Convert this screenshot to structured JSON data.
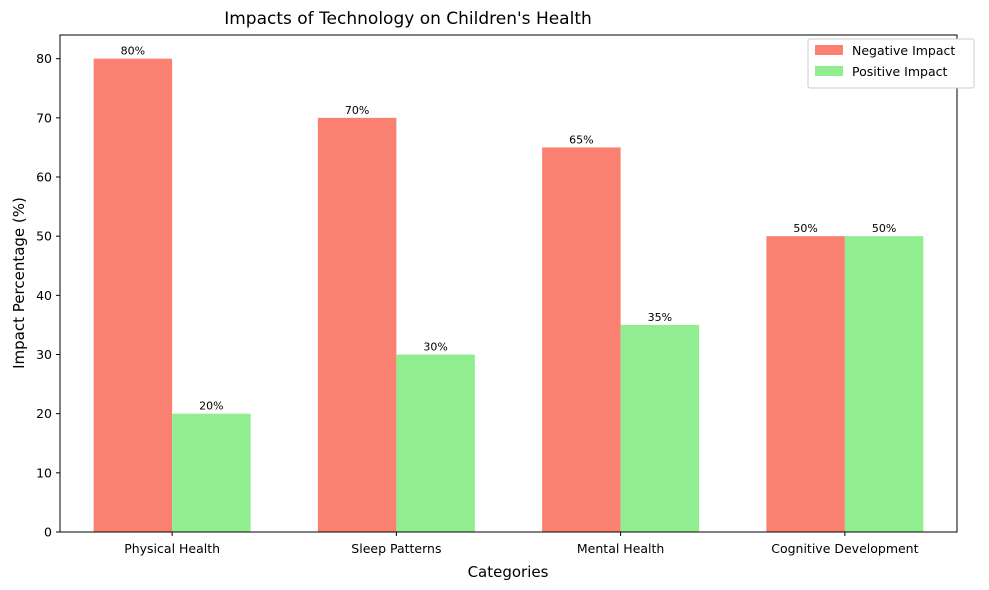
{
  "chart_data": {
    "type": "bar",
    "title": "Impacts of Technology on Children's Health",
    "xlabel": "Categories",
    "ylabel": "Impact Percentage (%)",
    "categories": [
      "Physical Health",
      "Sleep Patterns",
      "Mental Health",
      "Cognitive Development"
    ],
    "series": [
      {
        "name": "Negative Impact",
        "values": [
          80,
          70,
          65,
          50
        ],
        "color": "#fa8072",
        "labels": [
          "80%",
          "70%",
          "65%",
          "50%"
        ]
      },
      {
        "name": "Positive Impact",
        "values": [
          20,
          30,
          35,
          50
        ],
        "color": "#90ee90",
        "labels": [
          "20%",
          "30%",
          "35%",
          "50%"
        ]
      }
    ],
    "ylim": [
      0,
      84
    ],
    "yticks": [
      "0",
      "10",
      "20",
      "30",
      "40",
      "50",
      "60",
      "70",
      "80"
    ],
    "ytick_values": [
      0,
      10,
      20,
      30,
      40,
      50,
      60,
      70,
      80
    ],
    "grid": false,
    "legend_position": "top-right"
  }
}
